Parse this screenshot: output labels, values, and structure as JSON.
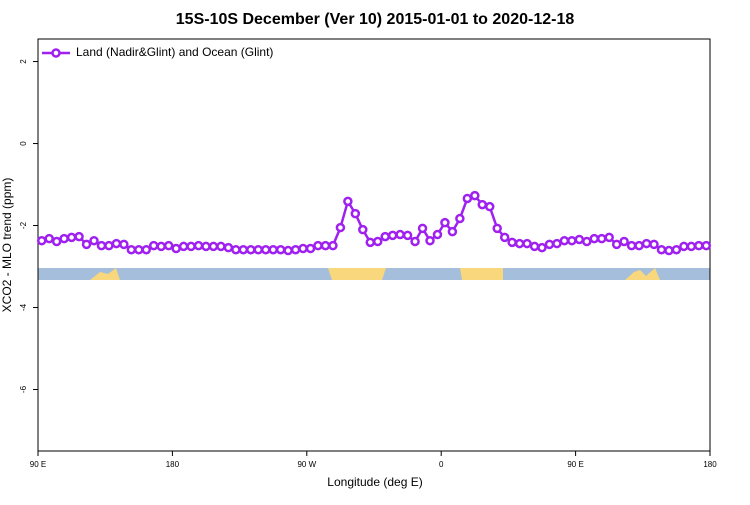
{
  "chart_data": {
    "type": "line",
    "title": "15S-10S December (Ver 10)   2015-01-01 to 2020-12-18",
    "x_label": "Longitude (deg E)",
    "y_label": "XCO2 - MLO trend (ppm)",
    "legend_position": "top-left",
    "xlim": [
      90,
      540
    ],
    "xticks": [
      {
        "value": 90,
        "label": "90 E"
      },
      {
        "value": 180,
        "label": "180"
      },
      {
        "value": 270,
        "label": "90 W"
      },
      {
        "value": 360,
        "label": "0"
      },
      {
        "value": 450,
        "label": "90 E"
      },
      {
        "value": 540,
        "label": "180"
      }
    ],
    "ylim": [
      -7.5,
      2.55
    ],
    "yticks": [
      2,
      0,
      -2,
      -4,
      -6
    ],
    "x": [
      92.5,
      97.5,
      102.5,
      107.5,
      112.5,
      117.5,
      122.5,
      127.5,
      132.5,
      137.5,
      142.5,
      147.5,
      152.5,
      157.5,
      162.5,
      167.5,
      172.5,
      177.5,
      182.5,
      187.5,
      192.5,
      197.5,
      202.5,
      207.5,
      212.5,
      217.5,
      222.5,
      227.5,
      232.5,
      237.5,
      242.5,
      247.5,
      252.5,
      257.5,
      262.5,
      267.5,
      272.5,
      277.5,
      282.5,
      287.5,
      292.5,
      297.5,
      302.5,
      307.5,
      312.5,
      317.5,
      322.5,
      327.5,
      332.5,
      337.5,
      342.5,
      347.5,
      352.5,
      357.5,
      362.5,
      367.5,
      372.5,
      377.5,
      382.5,
      387.5,
      392.5,
      397.5,
      402.5,
      407.5,
      412.5,
      417.5,
      422.5,
      427.5,
      432.5,
      437.5,
      442.5,
      447.5,
      452.5,
      457.5,
      462.5,
      467.5,
      472.5,
      477.5,
      482.5,
      487.5,
      492.5,
      497.5,
      502.5,
      507.5,
      512.5,
      517.5,
      522.5,
      527.5,
      532.5,
      537.5
    ],
    "series": [
      {
        "name": "Land (Nadir&Glint) and Ocean (Glint)",
        "color": "#a020f0",
        "values": [
          -2.37,
          -2.32,
          -2.39,
          -2.32,
          -2.29,
          -2.27,
          -2.46,
          -2.37,
          -2.49,
          -2.49,
          -2.44,
          -2.46,
          -2.59,
          -2.59,
          -2.59,
          -2.49,
          -2.51,
          -2.49,
          -2.56,
          -2.51,
          -2.51,
          -2.49,
          -2.51,
          -2.51,
          -2.51,
          -2.54,
          -2.59,
          -2.59,
          -2.59,
          -2.59,
          -2.59,
          -2.59,
          -2.59,
          -2.61,
          -2.59,
          -2.56,
          -2.56,
          -2.49,
          -2.49,
          -2.49,
          -2.05,
          -1.41,
          -1.71,
          -2.1,
          -2.41,
          -2.39,
          -2.27,
          -2.24,
          -2.22,
          -2.24,
          -2.39,
          -2.07,
          -2.37,
          -2.22,
          -1.93,
          -2.15,
          -1.83,
          -1.34,
          -1.27,
          -1.49,
          -1.54,
          -2.07,
          -2.29,
          -2.41,
          -2.44,
          -2.44,
          -2.51,
          -2.54,
          -2.46,
          -2.44,
          -2.37,
          -2.37,
          -2.34,
          -2.39,
          -2.32,
          -2.32,
          -2.29,
          -2.46,
          -2.39,
          -2.49,
          -2.49,
          -2.44,
          -2.46,
          -2.59,
          -2.61,
          -2.59,
          -2.51,
          -2.51,
          -2.49,
          -2.49
        ]
      }
    ]
  }
}
